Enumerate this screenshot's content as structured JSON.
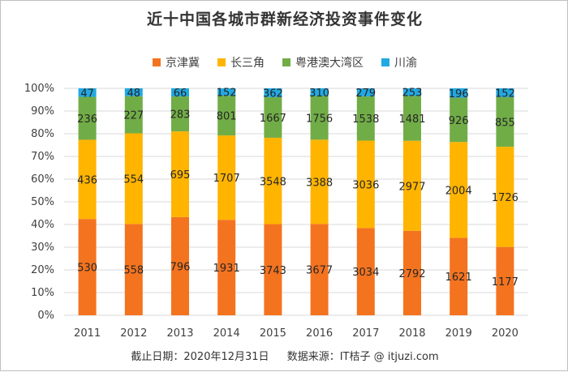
{
  "chart_data": {
    "type": "bar",
    "stacked": "percent",
    "title": "近十中国各城市群新经济投资事件变化",
    "categories": [
      "2011",
      "2012",
      "2013",
      "2014",
      "2015",
      "2016",
      "2017",
      "2018",
      "2019",
      "2020"
    ],
    "series": [
      {
        "name": "京津冀",
        "color": "#f4731f",
        "values": [
          530,
          558,
          796,
          1931,
          3743,
          3677,
          3034,
          2792,
          1621,
          1177
        ]
      },
      {
        "name": "长三角",
        "color": "#ffb400",
        "values": [
          436,
          554,
          695,
          1707,
          3548,
          3388,
          3036,
          2977,
          2004,
          1726
        ]
      },
      {
        "name": "粤港澳大湾区",
        "color": "#71ad47",
        "values": [
          236,
          227,
          283,
          801,
          1667,
          1756,
          1538,
          1481,
          926,
          855
        ]
      },
      {
        "name": "川渝",
        "color": "#21a9e1",
        "values": [
          47,
          48,
          66,
          152,
          362,
          310,
          279,
          253,
          196,
          152
        ]
      }
    ],
    "ylim": [
      0,
      100
    ],
    "y_ticks": [
      "0%",
      "10%",
      "20%",
      "30%",
      "40%",
      "50%",
      "60%",
      "70%",
      "80%",
      "90%",
      "100%"
    ],
    "grid": true,
    "legend_position": "top"
  },
  "footer": {
    "date_note": "截止日期：2020年12月31日",
    "source_note": "数据来源：IT桔子 @ itjuzi.com"
  }
}
